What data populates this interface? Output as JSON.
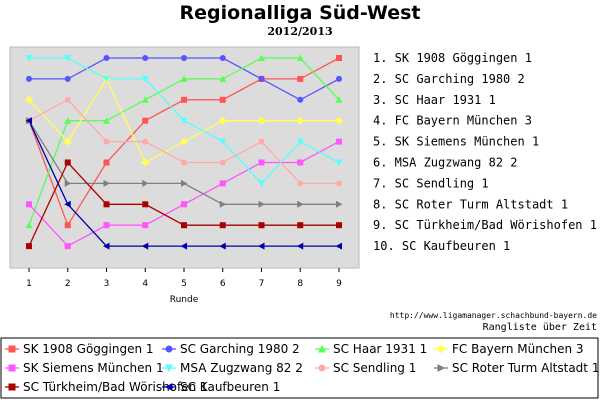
{
  "header": {
    "title": "Regionalliga Süd-West",
    "subtitle": "2012/2013"
  },
  "footer": {
    "url": "http://www.ligamanager.schachbund-bayern.de",
    "caption": "Rangliste über Zeit"
  },
  "chart_data": {
    "type": "line",
    "xlabel": "Runde",
    "ylabel": "",
    "x": [
      1,
      2,
      3,
      4,
      5,
      6,
      7,
      8,
      9
    ],
    "ylim": [
      1,
      10
    ],
    "y_inverted": true,
    "grid": false,
    "legend_position": "bottom",
    "rank_labels": [
      "1.  SK 1908 Göggingen 1",
      "2.  SC Garching 1980 2",
      "3.  SC Haar 1931 1",
      "4.  FC Bayern München 3",
      "5.  SK Siemens München 1",
      "6.  MSA Zugzwang 82 2",
      "7.  SC Sendling 1",
      "8.  SC Roter Turm Altstadt 1",
      "9.  SC Türkheim/Bad Wörishofen 1",
      "10. SC Kaufbeuren 1"
    ],
    "series": [
      {
        "name": "SK 1908 Göggingen 1",
        "color": "#ff5555",
        "marker": "square",
        "values": [
          4,
          9,
          6,
          4,
          3,
          3,
          2,
          2,
          1
        ]
      },
      {
        "name": "SC Garching 1980 2",
        "color": "#5555ff",
        "marker": "circle",
        "values": [
          2,
          2,
          1,
          1,
          1,
          1,
          2,
          3,
          2
        ]
      },
      {
        "name": "SC Haar 1931 1",
        "color": "#55ff55",
        "marker": "triangle-up",
        "values": [
          9,
          4,
          4,
          3,
          2,
          2,
          1,
          1,
          3
        ]
      },
      {
        "name": "FC Bayern München 3",
        "color": "#ffff55",
        "marker": "diamond",
        "values": [
          3,
          5,
          2,
          6,
          5,
          4,
          4,
          4,
          4
        ]
      },
      {
        "name": "SK Siemens München 1",
        "color": "#ff55ff",
        "marker": "square",
        "values": [
          8,
          10,
          9,
          9,
          8,
          7,
          6,
          6,
          5
        ]
      },
      {
        "name": "MSA Zugzwang 82 2",
        "color": "#55ffff",
        "marker": "triangle-down",
        "values": [
          1,
          1,
          2,
          2,
          4,
          5,
          7,
          5,
          6
        ]
      },
      {
        "name": "SC Sendling 1",
        "color": "#ffaaaa",
        "marker": "circle",
        "values": [
          4,
          3,
          5,
          5,
          6,
          6,
          5,
          7,
          7
        ]
      },
      {
        "name": "SC Roter Turm Altstadt 1",
        "color": "#808080",
        "marker": "triangle-right",
        "values": [
          4,
          7,
          7,
          7,
          7,
          8,
          8,
          8,
          8
        ]
      },
      {
        "name": "SC Türkheim/Bad Wörishofen 1",
        "color": "#aa0000",
        "marker": "square",
        "values": [
          10,
          6,
          8,
          8,
          9,
          9,
          9,
          9,
          9
        ]
      },
      {
        "name": "SC Kaufbeuren 1",
        "color": "#0000aa",
        "marker": "triangle-left",
        "values": [
          4,
          8,
          10,
          10,
          10,
          10,
          10,
          10,
          10
        ]
      }
    ]
  }
}
